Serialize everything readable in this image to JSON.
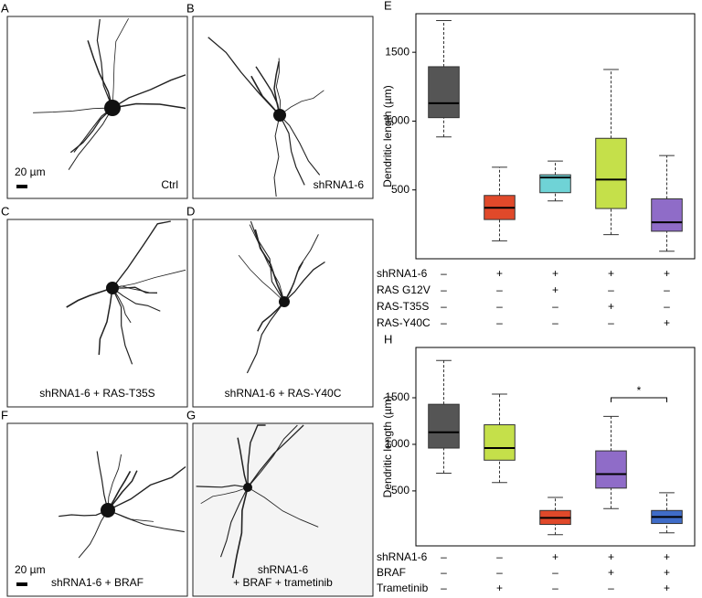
{
  "panels": [
    {
      "letter": "A",
      "caption": [
        "Ctrl"
      ],
      "scale_bar": "20 µm"
    },
    {
      "letter": "B",
      "caption": [
        "shRNA1-6"
      ]
    },
    {
      "letter": "C",
      "caption": [
        "shRNA1-6 + RAS-T35S"
      ]
    },
    {
      "letter": "D",
      "caption": [
        "shRNA1-6 + RAS-Y40C"
      ]
    },
    {
      "letter": "F",
      "caption": [
        "shRNA1-6 + BRAF"
      ],
      "scale_bar": "20 µm"
    },
    {
      "letter": "G",
      "caption": [
        "shRNA1-6",
        "+ BRAF + trametinib"
      ]
    }
  ],
  "chart_data": [
    {
      "type": "box",
      "label": "E",
      "ylabel": "Dendritic length (µm)",
      "ylim": [
        0,
        1780
      ],
      "yticks": [
        500,
        1000,
        1500
      ],
      "boxes": [
        {
          "color": "#555555",
          "min": 885,
          "q1": 1025,
          "median": 1130,
          "q3": 1395,
          "max": 1730
        },
        {
          "color": "#e0492a",
          "min": 130,
          "q1": 285,
          "median": 370,
          "q3": 460,
          "max": 665
        },
        {
          "color": "#6fd3d6",
          "min": 420,
          "q1": 480,
          "median": 590,
          "q3": 610,
          "max": 710
        },
        {
          "color": "#c5e04a",
          "min": 175,
          "q1": 365,
          "median": 575,
          "q3": 875,
          "max": 1375
        },
        {
          "color": "#8f6cc8",
          "min": 55,
          "q1": 200,
          "median": 265,
          "q3": 435,
          "max": 750
        }
      ],
      "conditions": [
        {
          "name": "shRNA1-6",
          "marks": [
            "–",
            "+",
            "+",
            "+",
            "+"
          ]
        },
        {
          "name": "RAS G12V",
          "marks": [
            "–",
            "–",
            "+",
            "–",
            "–"
          ]
        },
        {
          "name": "RAS-T35S",
          "marks": [
            "–",
            "–",
            "–",
            "+",
            "–"
          ]
        },
        {
          "name": "RAS-Y40C",
          "marks": [
            "–",
            "–",
            "–",
            "–",
            "+"
          ]
        }
      ]
    },
    {
      "type": "box",
      "label": "H",
      "ylabel": "Dendritic length (µm)",
      "ylim": [
        -90,
        2040
      ],
      "yticks": [
        500,
        1000,
        1500
      ],
      "annotation": "*",
      "boxes": [
        {
          "color": "#555555",
          "min": 690,
          "q1": 960,
          "median": 1130,
          "q3": 1430,
          "max": 1900
        },
        {
          "color": "#c5e04a",
          "min": 590,
          "q1": 830,
          "median": 960,
          "q3": 1210,
          "max": 1540
        },
        {
          "color": "#e0492a",
          "min": 30,
          "q1": 140,
          "median": 210,
          "q3": 290,
          "max": 430
        },
        {
          "color": "#8f6cc8",
          "min": 310,
          "q1": 530,
          "median": 680,
          "q3": 930,
          "max": 1300
        },
        {
          "color": "#3f6cc8",
          "min": 50,
          "q1": 150,
          "median": 220,
          "q3": 290,
          "max": 480
        }
      ],
      "conditions": [
        {
          "name": "shRNA1-6",
          "marks": [
            "–",
            "–",
            "+",
            "+",
            "+"
          ]
        },
        {
          "name": "BRAF",
          "marks": [
            "–",
            "–",
            "–",
            "+",
            "+"
          ]
        },
        {
          "name": "Trametinib",
          "marks": [
            "–",
            "+",
            "–",
            "–",
            "+"
          ]
        }
      ]
    }
  ]
}
